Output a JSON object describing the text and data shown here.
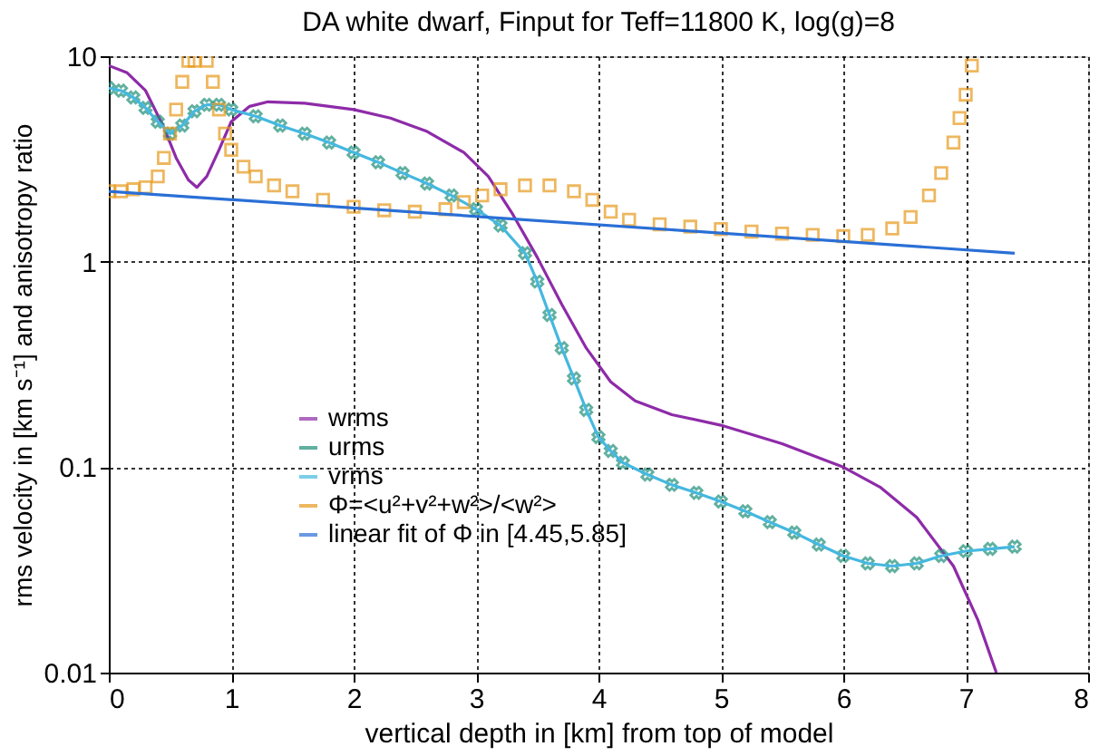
{
  "chart_data": {
    "type": "line",
    "title": "DA white dwarf, Finput for Teff=11800 K, log(g)=8",
    "xlabel": "vertical depth in [km] from top of model",
    "ylabel": "rms velocity in [km s⁻¹] and anisotropy ratio",
    "xlim": [
      0,
      8
    ],
    "xticks": [
      0,
      1,
      2,
      3,
      4,
      5,
      6,
      7,
      8
    ],
    "ylim": [
      0.01,
      10
    ],
    "yticks": [
      0.01,
      0.1,
      1,
      10
    ],
    "log": "y",
    "grid": true,
    "legend": "bottom",
    "series": [
      {
        "name": "wrms",
        "color": "#8e2ba8",
        "x": [
          0,
          0.15,
          0.3,
          0.45,
          0.55,
          0.65,
          0.72,
          0.8,
          0.9,
          1.0,
          1.15,
          1.3,
          1.6,
          2.0,
          2.3,
          2.6,
          2.9,
          3.1,
          3.3,
          3.5,
          3.7,
          3.9,
          4.1,
          4.3,
          4.6,
          5.0,
          5.5,
          6.0,
          6.3,
          6.6,
          6.9,
          7.1,
          7.25
        ],
        "values": [
          9,
          8.3,
          6.8,
          4.5,
          3.2,
          2.5,
          2.3,
          2.6,
          3.5,
          4.8,
          5.7,
          6,
          5.9,
          5.5,
          5,
          4.3,
          3.4,
          2.6,
          1.7,
          1.05,
          0.62,
          0.38,
          0.26,
          0.21,
          0.18,
          0.16,
          0.13,
          0.1,
          0.08,
          0.057,
          0.033,
          0.018,
          0.01
        ]
      },
      {
        "name": "urms",
        "type": "scatter",
        "marker": "cross",
        "color": "#1f8f78",
        "x": [
          0,
          0.1,
          0.2,
          0.3,
          0.4,
          0.5,
          0.6,
          0.7,
          0.8,
          0.9,
          1.0,
          1.2,
          1.4,
          1.6,
          1.8,
          2.0,
          2.2,
          2.4,
          2.6,
          2.8,
          3.0,
          3.2,
          3.4,
          3.5,
          3.6,
          3.7,
          3.8,
          3.9,
          4.0,
          4.1,
          4.2,
          4.4,
          4.6,
          4.8,
          5.0,
          5.2,
          5.4,
          5.6,
          5.8,
          6.0,
          6.2,
          6.4,
          6.6,
          6.8,
          7.0,
          7.2,
          7.4
        ],
        "values": [
          7,
          6.8,
          6.3,
          5.6,
          4.8,
          4.2,
          4.6,
          5.4,
          5.8,
          5.8,
          5.5,
          5.1,
          4.6,
          4.2,
          3.8,
          3.4,
          3.05,
          2.7,
          2.4,
          2.1,
          1.8,
          1.5,
          1.1,
          0.8,
          0.55,
          0.38,
          0.27,
          0.19,
          0.14,
          0.12,
          0.105,
          0.092,
          0.082,
          0.075,
          0.068,
          0.061,
          0.054,
          0.048,
          0.042,
          0.037,
          0.034,
          0.033,
          0.034,
          0.037,
          0.039,
          0.04,
          0.041
        ]
      },
      {
        "name": "vrms",
        "color": "#45b8e0",
        "x": [
          0,
          0.1,
          0.2,
          0.3,
          0.4,
          0.5,
          0.6,
          0.7,
          0.8,
          0.9,
          1.0,
          1.2,
          1.4,
          1.6,
          1.8,
          2.0,
          2.2,
          2.4,
          2.6,
          2.8,
          3.0,
          3.2,
          3.4,
          3.5,
          3.6,
          3.7,
          3.8,
          3.9,
          4.0,
          4.1,
          4.2,
          4.4,
          4.6,
          4.8,
          5.0,
          5.2,
          5.4,
          5.6,
          5.8,
          6.0,
          6.2,
          6.4,
          6.6,
          6.8,
          7.0,
          7.2,
          7.4
        ],
        "values": [
          7,
          6.8,
          6.3,
          5.6,
          4.8,
          4.2,
          4.6,
          5.4,
          5.8,
          5.8,
          5.5,
          5.1,
          4.6,
          4.2,
          3.8,
          3.4,
          3.05,
          2.7,
          2.4,
          2.1,
          1.8,
          1.5,
          1.1,
          0.8,
          0.55,
          0.38,
          0.27,
          0.19,
          0.14,
          0.12,
          0.105,
          0.092,
          0.082,
          0.075,
          0.068,
          0.061,
          0.054,
          0.048,
          0.042,
          0.037,
          0.034,
          0.033,
          0.034,
          0.037,
          0.039,
          0.04,
          0.041
        ]
      },
      {
        "name": "Φ=<u²+v²+w²>/<w²>",
        "type": "scatter",
        "marker": "square",
        "color": "#e89a1c",
        "x": [
          0,
          0.1,
          0.2,
          0.3,
          0.4,
          0.45,
          0.5,
          0.55,
          0.6,
          0.65,
          0.7,
          0.8,
          0.85,
          0.9,
          0.95,
          1.0,
          1.1,
          1.2,
          1.35,
          1.5,
          1.75,
          2.0,
          2.25,
          2.5,
          2.75,
          2.9,
          3.05,
          3.2,
          3.4,
          3.6,
          3.8,
          3.95,
          4.1,
          4.25,
          4.5,
          4.75,
          5.0,
          5.25,
          5.5,
          5.75,
          6.0,
          6.2,
          6.4,
          6.55,
          6.7,
          6.8,
          6.9,
          6.95,
          7.0,
          7.05
        ],
        "values": [
          2.2,
          2.2,
          2.25,
          2.3,
          2.6,
          3.2,
          4.2,
          5.5,
          7.5,
          9.5,
          9.5,
          9.5,
          7.5,
          5.5,
          4.2,
          3.5,
          2.9,
          2.6,
          2.35,
          2.2,
          2.0,
          1.85,
          1.78,
          1.75,
          1.8,
          1.95,
          2.1,
          2.25,
          2.35,
          2.35,
          2.2,
          2.0,
          1.75,
          1.6,
          1.52,
          1.48,
          1.44,
          1.4,
          1.37,
          1.35,
          1.33,
          1.35,
          1.45,
          1.65,
          2.1,
          2.7,
          3.8,
          5.0,
          6.5,
          9
        ]
      },
      {
        "name": "linear fit of Φ in [4.45,5.85]",
        "color": "#2a6fd6",
        "x": [
          0,
          7.4
        ],
        "values": [
          2.2,
          1.1
        ]
      }
    ]
  }
}
